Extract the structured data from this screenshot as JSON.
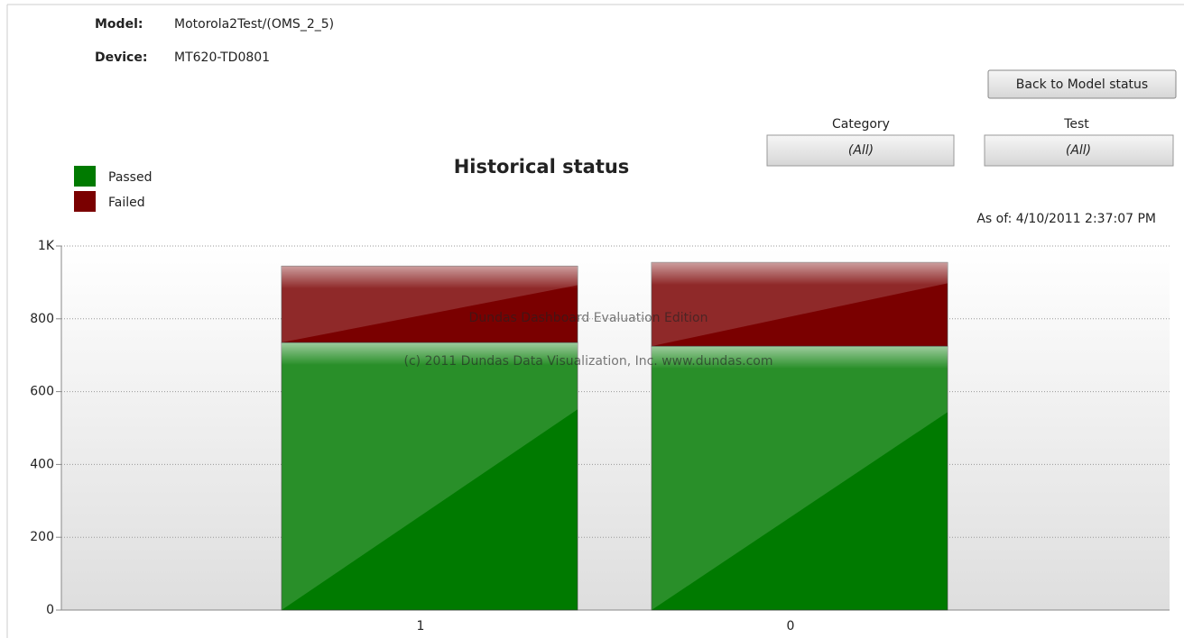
{
  "header": {
    "model_label": "Model:",
    "model": "Motorola2Test/(OMS_2_5)",
    "device_label": "Device:",
    "device": "MT620-TD0801"
  },
  "back_button": "Back to Model status",
  "filters": [
    {
      "label": "Category",
      "value": "(All)"
    },
    {
      "label": "Test",
      "value": "(All)"
    }
  ],
  "as_of": "As of: 4/10/2011 2:37:07 PM",
  "watermark": [
    "Dundas Dashboard Evaluation Edition",
    "(c) 2011 Dundas Data Visualization, Inc. www.dundas.com"
  ],
  "chart_data": {
    "type": "stacked_bar",
    "title": "Historical status",
    "categories": [
      "1",
      "0"
    ],
    "series": [
      {
        "name": "Passed",
        "color": "#007a00",
        "values": [
          735,
          725
        ]
      },
      {
        "name": "Failed",
        "color": "#7a0000",
        "values": [
          210,
          230
        ]
      }
    ],
    "ylim": [
      0,
      1000
    ],
    "yticks": [
      0,
      200,
      400,
      600,
      800,
      {
        "value": 1000,
        "label": "1K"
      }
    ],
    "grid": true
  }
}
